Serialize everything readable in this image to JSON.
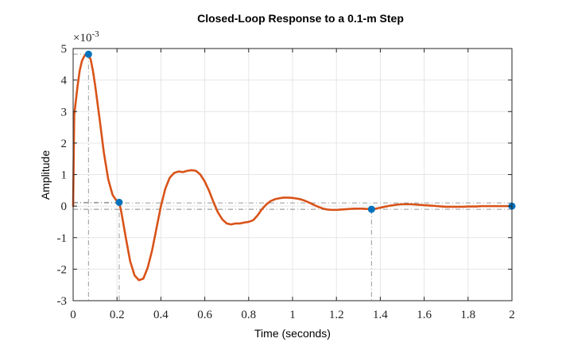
{
  "chart_data": {
    "type": "line",
    "title": "Closed-Loop Response to a 0.1-m Step",
    "xlabel": "Time (seconds)",
    "ylabel": "Amplitude",
    "y_exponent_label": "×10",
    "y_exponent_power": "-3",
    "xlim": [
      0,
      2
    ],
    "ylim": [
      -3,
      5
    ],
    "grid": true,
    "x_ticks": [
      0,
      0.2,
      0.4,
      0.6,
      0.8,
      1,
      1.2,
      1.4,
      1.6,
      1.8,
      2
    ],
    "x_tick_labels": [
      "0",
      "0.2",
      "0.4",
      "0.6",
      "0.8",
      "1",
      "1.2",
      "1.4",
      "1.6",
      "1.8",
      "2"
    ],
    "y_ticks": [
      -3,
      -2,
      -1,
      0,
      1,
      2,
      3,
      4,
      5
    ],
    "y_tick_labels": [
      "-3",
      "-2",
      "-1",
      "0",
      "1",
      "2",
      "3",
      "4",
      "5"
    ],
    "series": [
      {
        "color": "#D95319",
        "x": [
          0,
          0.005,
          0.01,
          0.02,
          0.03,
          0.04,
          0.05,
          0.06,
          0.07,
          0.08,
          0.09,
          0.1,
          0.12,
          0.14,
          0.16,
          0.18,
          0.2,
          0.21,
          0.22,
          0.24,
          0.26,
          0.28,
          0.3,
          0.32,
          0.34,
          0.36,
          0.38,
          0.4,
          0.42,
          0.44,
          0.46,
          0.48,
          0.5,
          0.52,
          0.54,
          0.56,
          0.58,
          0.6,
          0.62,
          0.64,
          0.66,
          0.68,
          0.7,
          0.72,
          0.74,
          0.76,
          0.78,
          0.8,
          0.82,
          0.84,
          0.86,
          0.88,
          0.9,
          0.92,
          0.94,
          0.96,
          0.98,
          1.0,
          1.02,
          1.04,
          1.06,
          1.08,
          1.1,
          1.12,
          1.14,
          1.16,
          1.18,
          1.2,
          1.22,
          1.24,
          1.26,
          1.28,
          1.3,
          1.32,
          1.34,
          1.36,
          1.38,
          1.4,
          1.42,
          1.44,
          1.46,
          1.48,
          1.5,
          1.52,
          1.54,
          1.56,
          1.58,
          1.6,
          1.62,
          1.64,
          1.66,
          1.68,
          1.7,
          1.72,
          1.74,
          1.76,
          1.78,
          1.8,
          1.82,
          1.84,
          1.86,
          1.88,
          1.9,
          1.92,
          1.94,
          1.96,
          1.98,
          2.0
        ],
        "y": [
          0,
          2.9,
          3.2,
          3.8,
          4.3,
          4.6,
          4.75,
          4.82,
          4.82,
          4.65,
          4.3,
          3.85,
          2.8,
          1.7,
          0.85,
          0.35,
          0.15,
          0.12,
          -0.2,
          -1.0,
          -1.75,
          -2.2,
          -2.35,
          -2.3,
          -1.95,
          -1.4,
          -0.7,
          0.0,
          0.55,
          0.9,
          1.05,
          1.1,
          1.08,
          1.12,
          1.14,
          1.12,
          1.0,
          0.78,
          0.48,
          0.12,
          -0.2,
          -0.42,
          -0.55,
          -0.58,
          -0.55,
          -0.55,
          -0.52,
          -0.5,
          -0.45,
          -0.3,
          -0.1,
          0.05,
          0.16,
          0.22,
          0.25,
          0.27,
          0.27,
          0.26,
          0.24,
          0.21,
          0.16,
          0.1,
          0.03,
          -0.03,
          -0.08,
          -0.11,
          -0.12,
          -0.12,
          -0.11,
          -0.1,
          -0.09,
          -0.08,
          -0.08,
          -0.08,
          -0.09,
          -0.1,
          -0.08,
          -0.05,
          -0.02,
          0.01,
          0.03,
          0.05,
          0.06,
          0.06,
          0.06,
          0.05,
          0.04,
          0.03,
          0.02,
          0.01,
          0.0,
          -0.01,
          -0.02,
          -0.02,
          -0.02,
          -0.02,
          -0.02,
          -0.01,
          -0.01,
          -0.01,
          0.0,
          0.0,
          0.0,
          0.0,
          0.0,
          0.0,
          0.0,
          0.0
        ]
      }
    ],
    "markers": [
      {
        "x": 0.07,
        "y": 4.82,
        "color": "#0072BD"
      },
      {
        "x": 0.21,
        "y": 0.12,
        "color": "#0072BD"
      },
      {
        "x": 1.36,
        "y": -0.1,
        "color": "#0072BD"
      },
      {
        "x": 2.0,
        "y": 0.0,
        "color": "#0072BD"
      }
    ],
    "reference_lines": {
      "band_upper": 0.1,
      "band_lower": -0.1,
      "color": "#999999"
    }
  }
}
